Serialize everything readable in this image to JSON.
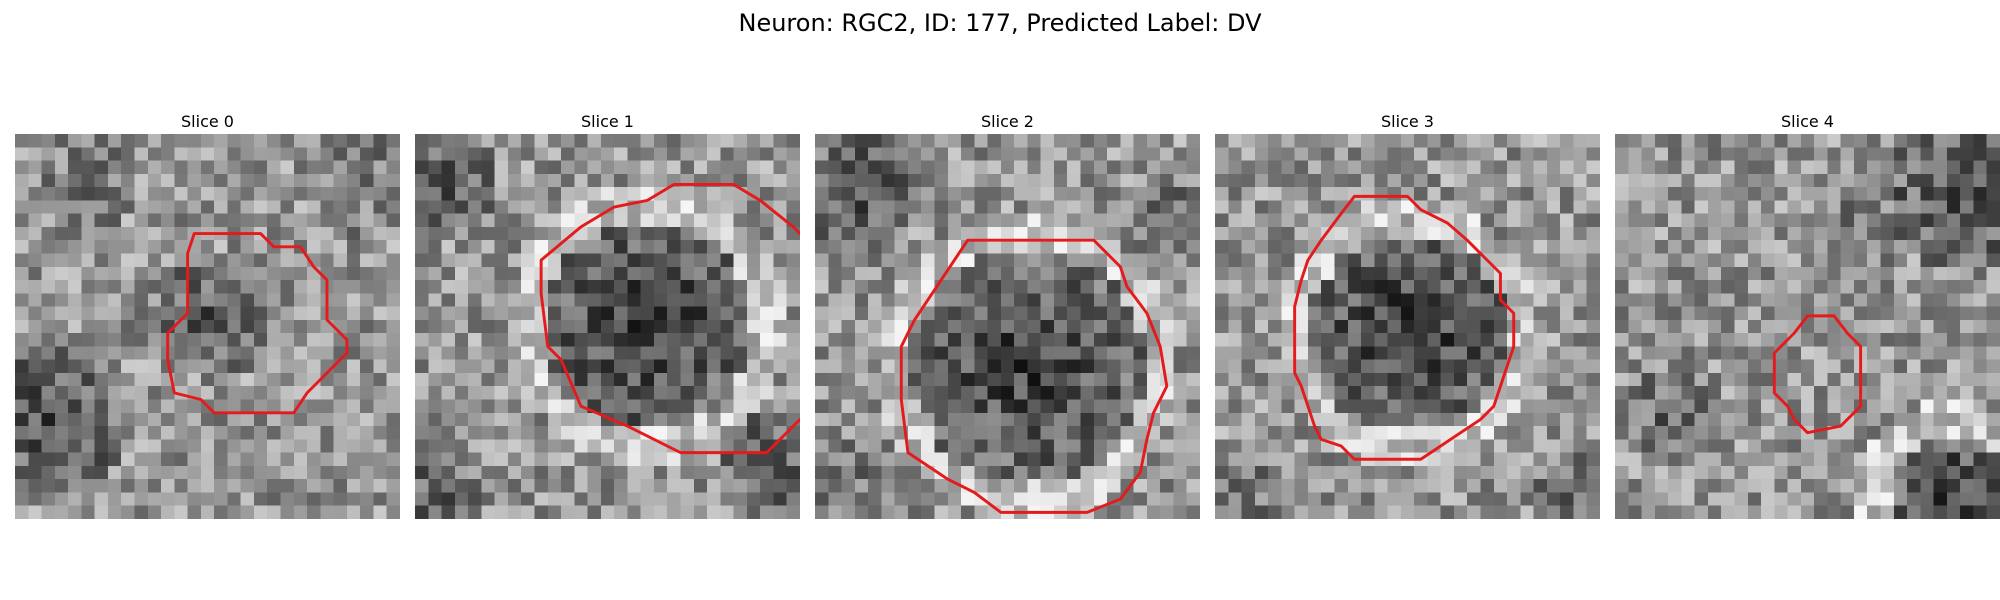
{
  "figure": {
    "title": "Neuron: RGC2, ID: 177, Predicted Label: DV"
  },
  "overlay_color": "#e41a1c",
  "panels": [
    {
      "title": "Slice 0",
      "seed": 11,
      "contour": [
        [
          13.5,
          7.5
        ],
        [
          18.5,
          7.5
        ],
        [
          19.5,
          8.5
        ],
        [
          21.5,
          8.5
        ],
        [
          22.5,
          10
        ],
        [
          23.5,
          11
        ],
        [
          23.5,
          14
        ],
        [
          25,
          15.5
        ],
        [
          25,
          16.5
        ],
        [
          23.5,
          18
        ],
        [
          22,
          19.5
        ],
        [
          21,
          21
        ],
        [
          15,
          21
        ],
        [
          14,
          20
        ],
        [
          12,
          19.5
        ],
        [
          11.5,
          17
        ],
        [
          11.5,
          15
        ],
        [
          13,
          13.5
        ],
        [
          13,
          9
        ]
      ]
    },
    {
      "title": "Slice 1",
      "seed": 23,
      "contour": [
        [
          15,
          5.5
        ],
        [
          17.5,
          5
        ],
        [
          19.5,
          3.8
        ],
        [
          24,
          3.8
        ],
        [
          26,
          5
        ],
        [
          28.5,
          7
        ],
        [
          30,
          8.5
        ],
        [
          31,
          11.5
        ],
        [
          32.5,
          13
        ],
        [
          32.5,
          16.5
        ],
        [
          31.5,
          17.5
        ],
        [
          31.5,
          19
        ],
        [
          29,
          21.5
        ],
        [
          26.5,
          24
        ],
        [
          20,
          24
        ],
        [
          16,
          22
        ],
        [
          12.5,
          20.5
        ],
        [
          11,
          17
        ],
        [
          10,
          16
        ],
        [
          9.5,
          12
        ],
        [
          9.5,
          9.5
        ],
        [
          12.5,
          7
        ]
      ]
    },
    {
      "title": "Slice 2",
      "seed": 37,
      "contour": [
        [
          11.5,
          8
        ],
        [
          21,
          8
        ],
        [
          23,
          10
        ],
        [
          23.5,
          11.5
        ],
        [
          25,
          13.5
        ],
        [
          26,
          16
        ],
        [
          26.5,
          19
        ],
        [
          25.5,
          21
        ],
        [
          25,
          23
        ],
        [
          24.5,
          25.5
        ],
        [
          23,
          27.5
        ],
        [
          20.5,
          28.5
        ],
        [
          14,
          28.5
        ],
        [
          12,
          27
        ],
        [
          10,
          26
        ],
        [
          7,
          24
        ],
        [
          6.5,
          20
        ],
        [
          6.5,
          16
        ],
        [
          7.5,
          14
        ],
        [
          8.5,
          12.5
        ]
      ]
    },
    {
      "title": "Slice 3",
      "seed": 51,
      "contour": [
        [
          10.5,
          4.7
        ],
        [
          14.5,
          4.7
        ],
        [
          15.5,
          5.7
        ],
        [
          17.5,
          6.7
        ],
        [
          19,
          8
        ],
        [
          20.5,
          9.5
        ],
        [
          21.5,
          10.5
        ],
        [
          21.5,
          12.5
        ],
        [
          22.5,
          13.5
        ],
        [
          22.5,
          16
        ],
        [
          22,
          17.5
        ],
        [
          21.5,
          19
        ],
        [
          21,
          20.5
        ],
        [
          20,
          21.5
        ],
        [
          18.5,
          22.5
        ],
        [
          17,
          23.5
        ],
        [
          15.5,
          24.5
        ],
        [
          10.5,
          24.5
        ],
        [
          9.5,
          23.5
        ],
        [
          8,
          23
        ],
        [
          7.5,
          22
        ],
        [
          7,
          20.5
        ],
        [
          6.5,
          19
        ],
        [
          6,
          18
        ],
        [
          6,
          13
        ],
        [
          6.5,
          11
        ],
        [
          7,
          9.5
        ],
        [
          8,
          8
        ],
        [
          9.5,
          6
        ]
      ]
    },
    {
      "title": "Slice 4",
      "seed": 67,
      "contour": [
        [
          14.5,
          13.7
        ],
        [
          16.5,
          13.7
        ],
        [
          17.5,
          15
        ],
        [
          18.5,
          16
        ],
        [
          18.5,
          20.5
        ],
        [
          17,
          22
        ],
        [
          14.5,
          22.5
        ],
        [
          13.5,
          21.5
        ],
        [
          13,
          20.5
        ],
        [
          12,
          19.5
        ],
        [
          12,
          16.5
        ],
        [
          13.5,
          15
        ]
      ]
    }
  ]
}
